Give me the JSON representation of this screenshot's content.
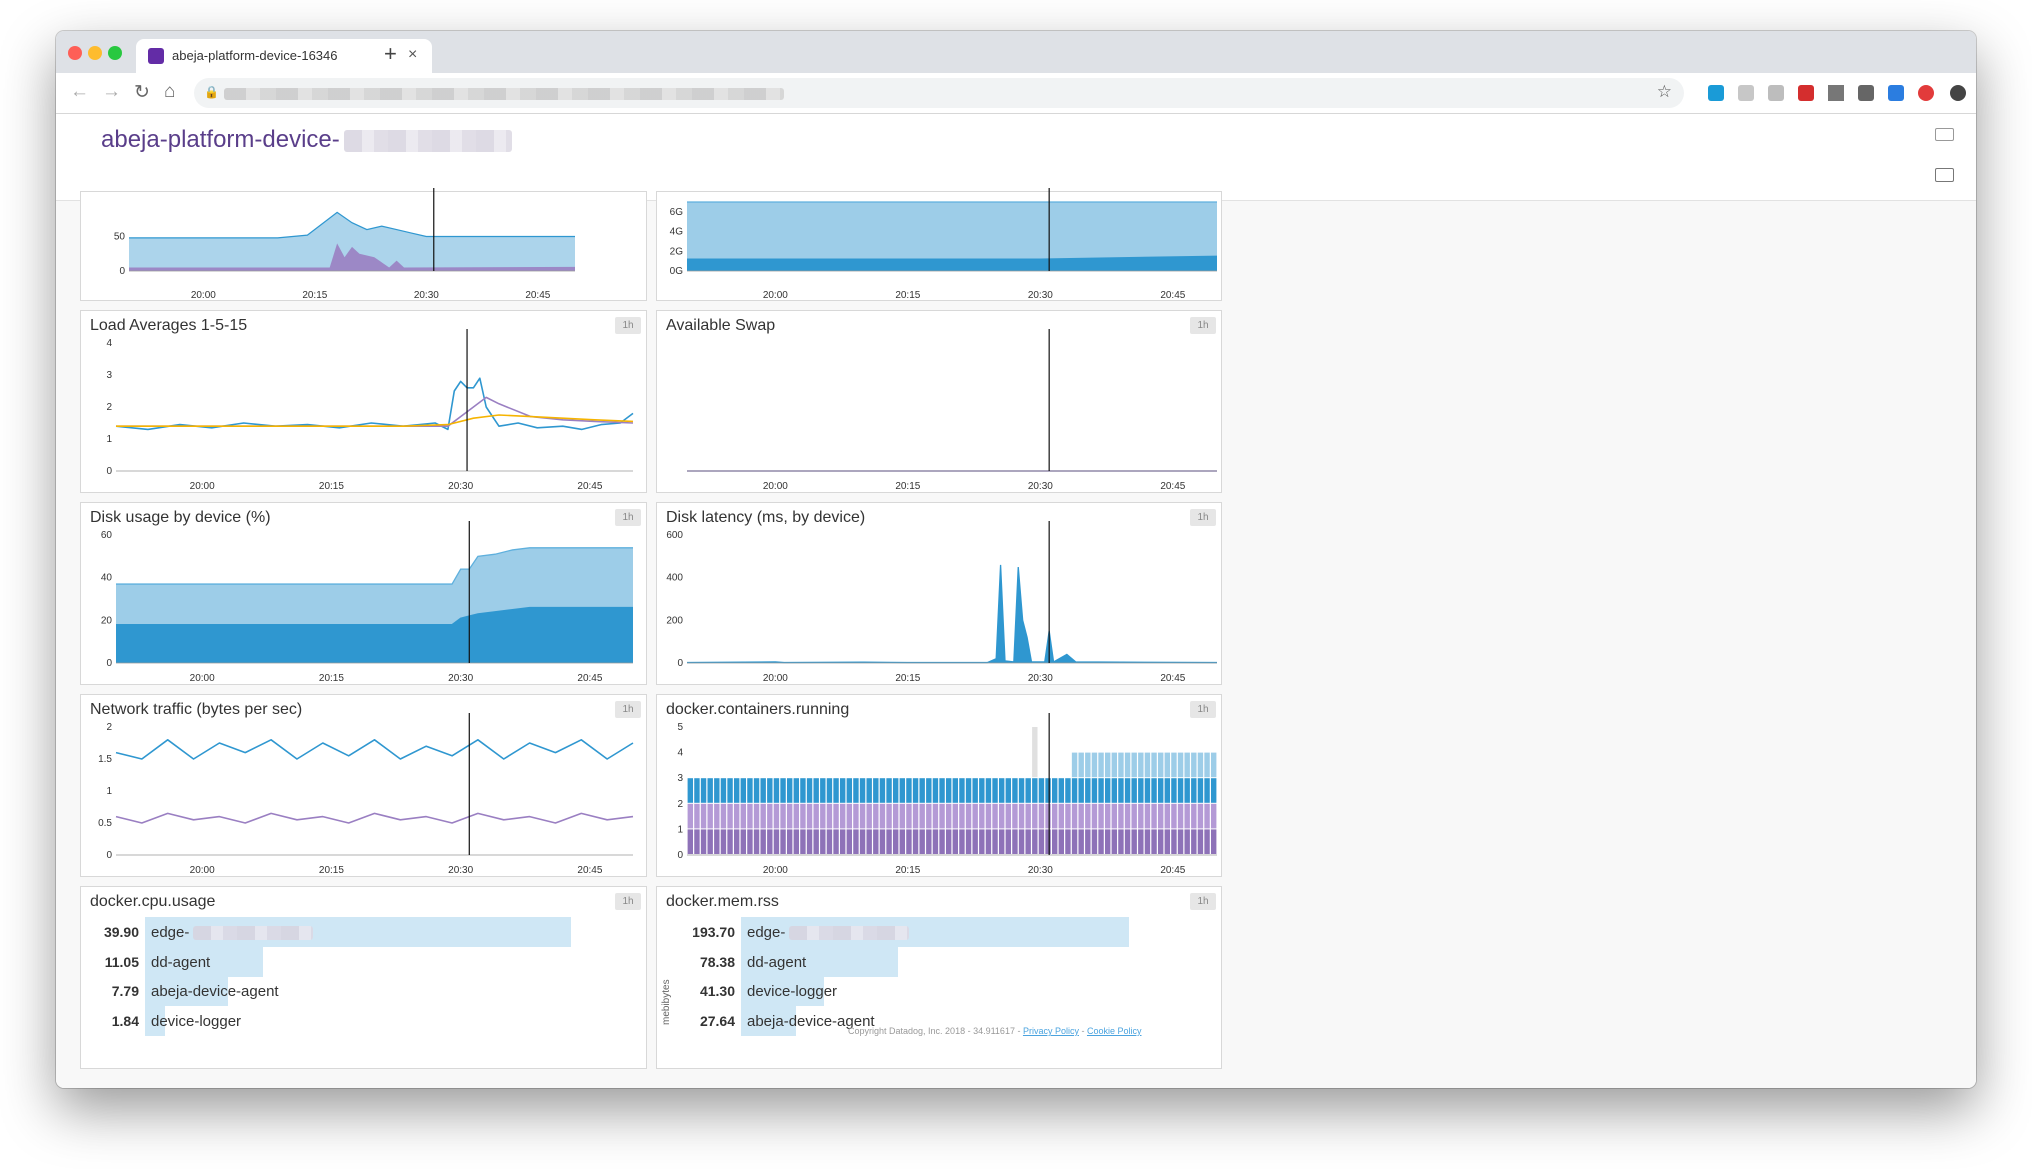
{
  "browser": {
    "tab_title": "abeja-platform-device-16346",
    "close_glyph": "×",
    "new_tab_glyph": "+"
  },
  "page": {
    "title_prefix": "abeja-platform-device-"
  },
  "widgets": [
    {
      "key": "cpu_top",
      "title": "",
      "badge": "",
      "y_ticks": [
        {
          "v": 0,
          "label": "0"
        },
        {
          "v": 50,
          "label": "50"
        }
      ],
      "x_ticks": [
        "20:00",
        "20:15",
        "20:30",
        "20:45"
      ]
    },
    {
      "key": "mem_top",
      "title": "",
      "badge": "",
      "y_ticks": [
        {
          "v": 0,
          "label": "0G"
        },
        {
          "v": 2,
          "label": "2G"
        },
        {
          "v": 4,
          "label": "4G"
        },
        {
          "v": 6,
          "label": "6G"
        }
      ],
      "x_ticks": [
        "20:00",
        "20:15",
        "20:30",
        "20:45"
      ]
    },
    {
      "key": "load",
      "title": "Load Averages 1-5-15",
      "badge": "1h",
      "y_ticks": [
        {
          "v": 0,
          "label": "0"
        },
        {
          "v": 1,
          "label": "1"
        },
        {
          "v": 2,
          "label": "2"
        },
        {
          "v": 3,
          "label": "3"
        },
        {
          "v": 4,
          "label": "4"
        }
      ],
      "x_ticks": [
        "20:00",
        "20:15",
        "20:30",
        "20:45"
      ]
    },
    {
      "key": "swap",
      "title": "Available Swap",
      "badge": "1h",
      "y_ticks": [],
      "x_ticks": [
        "20:00",
        "20:15",
        "20:30",
        "20:45"
      ]
    },
    {
      "key": "disk_usage",
      "title": "Disk usage by device (%)",
      "badge": "1h",
      "y_ticks": [
        {
          "v": 0,
          "label": "0"
        },
        {
          "v": 20,
          "label": "20"
        },
        {
          "v": 40,
          "label": "40"
        },
        {
          "v": 60,
          "label": "60"
        }
      ],
      "x_ticks": [
        "20:00",
        "20:15",
        "20:30",
        "20:45"
      ]
    },
    {
      "key": "disk_latency",
      "title": "Disk latency (ms, by device)",
      "badge": "1h",
      "y_ticks": [
        {
          "v": 0,
          "label": "0"
        },
        {
          "v": 200,
          "label": "200"
        },
        {
          "v": 400,
          "label": "400"
        },
        {
          "v": 600,
          "label": "600"
        }
      ],
      "x_ticks": [
        "20:00",
        "20:15",
        "20:30",
        "20:45"
      ]
    },
    {
      "key": "net",
      "title": "Network traffic (bytes per sec)",
      "badge": "1h",
      "y_ticks": [
        {
          "v": 0,
          "label": "0"
        },
        {
          "v": 0.5,
          "label": "0.5"
        },
        {
          "v": 1,
          "label": "1"
        },
        {
          "v": 1.5,
          "label": "1.5"
        },
        {
          "v": 2,
          "label": "2"
        }
      ],
      "x_ticks": [
        "20:00",
        "20:15",
        "20:30",
        "20:45"
      ]
    },
    {
      "key": "containers",
      "title": "docker.containers.running",
      "badge": "1h",
      "y_ticks": [
        {
          "v": 0,
          "label": "0"
        },
        {
          "v": 1,
          "label": "1"
        },
        {
          "v": 2,
          "label": "2"
        },
        {
          "v": 3,
          "label": "3"
        },
        {
          "v": 4,
          "label": "4"
        },
        {
          "v": 5,
          "label": "5"
        }
      ],
      "x_ticks": [
        "20:00",
        "20:15",
        "20:30",
        "20:45"
      ]
    },
    {
      "key": "cpu_usage",
      "title": "docker.cpu.usage",
      "badge": "1h",
      "rows": [
        {
          "value": "39.90",
          "num": 39.9,
          "name": "edge-",
          "blurred": true
        },
        {
          "value": "11.05",
          "num": 11.05,
          "name": "dd-agent"
        },
        {
          "value": "7.79",
          "num": 7.79,
          "name": "abeja-device-agent"
        },
        {
          "value": "1.84",
          "num": 1.84,
          "name": "device-logger"
        }
      ]
    },
    {
      "key": "mem_rss",
      "title": "docker.mem.rss",
      "badge": "1h",
      "unit": "mebibytes",
      "rows": [
        {
          "value": "193.70",
          "num": 193.7,
          "name": "edge-",
          "blurred": true
        },
        {
          "value": "78.38",
          "num": 78.38,
          "name": "dd-agent"
        },
        {
          "value": "41.30",
          "num": 41.3,
          "name": "device-logger"
        },
        {
          "value": "27.64",
          "num": 27.64,
          "name": "abeja-device-agent"
        }
      ],
      "copyright": "Copyright Datadog, Inc. 2018 - 34.911617 - ",
      "privacy": "Privacy Policy",
      "cookie": "Cookie Policy",
      "sep": " - "
    }
  ],
  "chart_data": [
    {
      "type": "area",
      "widget": "cpu_top",
      "ylim": [
        0,
        100
      ],
      "x_range": [
        "19:50",
        "20:50"
      ],
      "series": [
        {
          "name": "",
          "values": [
            [
              0,
              48
            ],
            [
              20,
              48
            ],
            [
              24,
              52
            ],
            [
              28,
              85
            ],
            [
              30,
              70
            ],
            [
              32,
              60
            ],
            [
              34,
              65
            ],
            [
              36,
              60
            ],
            [
              38,
              55
            ],
            [
              40,
              50
            ],
            [
              60,
              50
            ]
          ]
        },
        {
          "name": "",
          "values": [
            [
              0,
              5
            ],
            [
              27,
              5
            ],
            [
              28,
              40
            ],
            [
              29,
              20
            ],
            [
              30,
              35
            ],
            [
              31,
              25
            ],
            [
              33,
              20
            ],
            [
              35,
              5
            ],
            [
              36,
              15
            ],
            [
              37,
              5
            ],
            [
              60,
              6
            ]
          ]
        }
      ]
    },
    {
      "type": "area",
      "widget": "mem_top",
      "ylim": [
        0,
        7
      ],
      "x_range": [
        "19:50",
        "20:50"
      ],
      "series": [
        {
          "name": "",
          "values": [
            [
              0,
              7
            ],
            [
              60,
              7
            ]
          ]
        },
        {
          "name": "",
          "values": [
            [
              0,
              1.2
            ],
            [
              40,
              1.2
            ],
            [
              60,
              1.5
            ]
          ]
        }
      ]
    },
    {
      "type": "line",
      "widget": "load",
      "ylim": [
        0,
        4
      ],
      "x_range": [
        "19:50",
        "20:50"
      ],
      "series": [
        {
          "name": "",
          "values": [
            [
              0,
              1.4
            ],
            [
              5,
              1.3
            ],
            [
              10,
              1.45
            ],
            [
              15,
              1.35
            ],
            [
              20,
              1.5
            ],
            [
              25,
              1.4
            ],
            [
              30,
              1.45
            ],
            [
              35,
              1.35
            ],
            [
              40,
              1.5
            ],
            [
              45,
              1.4
            ],
            [
              50,
              1.5
            ],
            [
              52,
              1.3
            ],
            [
              53,
              2.5
            ],
            [
              54,
              2.8
            ],
            [
              55,
              2.6
            ],
            [
              56,
              2.6
            ],
            [
              57,
              2.9
            ],
            [
              58,
              2.0
            ],
            [
              60,
              1.4
            ],
            [
              63,
              1.5
            ],
            [
              66,
              1.35
            ],
            [
              70,
              1.4
            ],
            [
              73,
              1.3
            ],
            [
              76,
              1.45
            ],
            [
              79,
              1.5
            ],
            [
              81,
              1.8
            ]
          ]
        },
        {
          "name": "",
          "values": [
            [
              0,
              1.4
            ],
            [
              20,
              1.4
            ],
            [
              45,
              1.4
            ],
            [
              52,
              1.4
            ],
            [
              56,
              2.0
            ],
            [
              58,
              2.3
            ],
            [
              60,
              2.1
            ],
            [
              65,
              1.7
            ],
            [
              70,
              1.6
            ],
            [
              75,
              1.55
            ],
            [
              81,
              1.5
            ]
          ]
        },
        {
          "name": "",
          "values": [
            [
              0,
              1.4
            ],
            [
              45,
              1.4
            ],
            [
              52,
              1.45
            ],
            [
              56,
              1.65
            ],
            [
              60,
              1.75
            ],
            [
              65,
              1.7
            ],
            [
              70,
              1.65
            ],
            [
              75,
              1.6
            ],
            [
              81,
              1.55
            ]
          ]
        }
      ]
    },
    {
      "type": "line",
      "widget": "swap",
      "ylim": [
        0,
        4
      ],
      "x_range": [
        "19:50",
        "20:50"
      ],
      "series": [
        {
          "name": "",
          "values": [
            [
              0,
              0
            ],
            [
              60,
              0
            ]
          ]
        }
      ]
    },
    {
      "type": "area",
      "widget": "disk_usage",
      "ylim": [
        0,
        60
      ],
      "x_range": [
        "19:50",
        "20:50"
      ],
      "series": [
        {
          "name": "",
          "values": [
            [
              0,
              37
            ],
            [
              39,
              37
            ],
            [
              40,
              44
            ],
            [
              41,
              44
            ],
            [
              42,
              50
            ],
            [
              44,
              51
            ],
            [
              46,
              53
            ],
            [
              48,
              54
            ],
            [
              60,
              54
            ]
          ]
        },
        {
          "name": "",
          "values": [
            [
              0,
              18
            ],
            [
              39,
              18
            ],
            [
              40,
              21
            ],
            [
              41,
              22
            ],
            [
              42,
              23
            ],
            [
              44,
              24
            ],
            [
              46,
              25
            ],
            [
              48,
              26
            ],
            [
              60,
              26
            ]
          ]
        }
      ]
    },
    {
      "type": "area",
      "widget": "disk_latency",
      "ylim": [
        0,
        600
      ],
      "x_range": [
        "19:50",
        "20:50"
      ],
      "series": [
        {
          "name": "",
          "values": [
            [
              0,
              2
            ],
            [
              10,
              5
            ],
            [
              11,
              2
            ],
            [
              20,
              4
            ],
            [
              25,
              2
            ],
            [
              34,
              2
            ],
            [
              35,
              20
            ],
            [
              35.5,
              460
            ],
            [
              36,
              10
            ],
            [
              37,
              5
            ],
            [
              37.5,
              450
            ],
            [
              38,
              200
            ],
            [
              38.5,
              120
            ],
            [
              39,
              5
            ],
            [
              40.5,
              5
            ],
            [
              41,
              150
            ],
            [
              41.5,
              5
            ],
            [
              43,
              40
            ],
            [
              44,
              5
            ],
            [
              60,
              2
            ]
          ]
        }
      ]
    },
    {
      "type": "line",
      "widget": "net",
      "ylim": [
        0,
        2
      ],
      "x_range": [
        "19:50",
        "20:50"
      ],
      "series": [
        {
          "name": "",
          "values": [
            [
              0,
              1.6
            ],
            [
              3,
              1.5
            ],
            [
              6,
              1.8
            ],
            [
              9,
              1.5
            ],
            [
              12,
              1.75
            ],
            [
              15,
              1.6
            ],
            [
              18,
              1.8
            ],
            [
              21,
              1.5
            ],
            [
              24,
              1.75
            ],
            [
              27,
              1.55
            ],
            [
              30,
              1.8
            ],
            [
              33,
              1.5
            ],
            [
              36,
              1.7
            ],
            [
              39,
              1.55
            ],
            [
              42,
              1.8
            ],
            [
              45,
              1.5
            ],
            [
              48,
              1.75
            ],
            [
              51,
              1.6
            ],
            [
              54,
              1.8
            ],
            [
              57,
              1.5
            ],
            [
              60,
              1.75
            ]
          ]
        },
        {
          "name": "",
          "values": [
            [
              0,
              0.6
            ],
            [
              3,
              0.5
            ],
            [
              6,
              0.65
            ],
            [
              9,
              0.55
            ],
            [
              12,
              0.6
            ],
            [
              15,
              0.5
            ],
            [
              18,
              0.65
            ],
            [
              21,
              0.55
            ],
            [
              24,
              0.6
            ],
            [
              27,
              0.5
            ],
            [
              30,
              0.65
            ],
            [
              33,
              0.55
            ],
            [
              36,
              0.6
            ],
            [
              39,
              0.5
            ],
            [
              42,
              0.65
            ],
            [
              45,
              0.55
            ],
            [
              48,
              0.6
            ],
            [
              51,
              0.5
            ],
            [
              54,
              0.65
            ],
            [
              57,
              0.55
            ],
            [
              60,
              0.6
            ]
          ]
        }
      ]
    },
    {
      "type": "bar",
      "widget": "containers",
      "ylim": [
        0,
        5
      ],
      "x_range": [
        "19:50",
        "20:50"
      ],
      "bins": 80,
      "series": [
        {
          "name": "",
          "values": "1 per bin"
        },
        {
          "name": "",
          "values": "1 per bin"
        },
        {
          "name": "",
          "values": "1 per bin"
        },
        {
          "name": "",
          "values": "1 per bin from 20:33"
        }
      ]
    },
    {
      "type": "bar",
      "widget": "cpu_usage",
      "categories": [
        "edge-",
        "dd-agent",
        "abeja-device-agent",
        "device-logger"
      ],
      "values": [
        39.9,
        11.05,
        7.79,
        1.84
      ]
    },
    {
      "type": "bar",
      "widget": "mem_rss",
      "categories": [
        "edge-",
        "dd-agent",
        "device-logger",
        "abeja-device-agent"
      ],
      "values": [
        193.7,
        78.38,
        41.3,
        27.64
      ]
    }
  ],
  "colors": {
    "dark_blue": "#2f97d0",
    "light_blue": "#9dcde8",
    "purple": "#9a7fc2",
    "orange": "#f6b400",
    "cursor": "#111111"
  },
  "icons": [
    "favicon-datadog-icon",
    "close-tab-icon",
    "new-tab-icon",
    "back-icon",
    "forward-icon",
    "reload-icon",
    "home-icon",
    "lock-icon",
    "bookmark-star-icon",
    "keyboard-icon",
    "tv-mode-icon"
  ]
}
